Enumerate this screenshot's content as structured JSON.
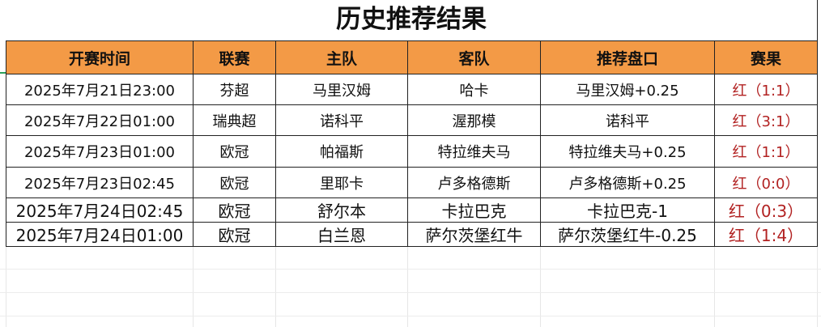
{
  "title": "历史推荐结果",
  "colors": {
    "header_bg": "#f39a46",
    "result_text": "#b22222"
  },
  "table": {
    "headers": [
      "开赛时间",
      "联赛",
      "主队",
      "客队",
      "推荐盘口",
      "赛果"
    ],
    "rows": [
      [
        "2025年7月21日23:00",
        "芬超",
        "马里汉姆",
        "哈卡",
        "马里汉姆+0.25",
        "红（1:1）"
      ],
      [
        "2025年7月22日01:00",
        "瑞典超",
        "诺科平",
        "渥那模",
        "诺科平",
        "红（3:1）"
      ],
      [
        "2025年7月23日01:00",
        "欧冠",
        "帕福斯",
        "特拉维夫马",
        "特拉维夫马+0.25",
        "红（1:1）"
      ],
      [
        "2025年7月23日02:45",
        "欧冠",
        "里耶卡",
        "卢多格德斯",
        "卢多格德斯+0.25",
        "红（0:0）"
      ],
      [
        "2025年7月24日02:45",
        "欧冠",
        "舒尔本",
        "卡拉巴克",
        "卡拉巴克-1",
        "红（0:3）"
      ],
      [
        "2025年7月24日01:00",
        "欧冠",
        "白兰恩",
        "萨尔茨堡红牛",
        "萨尔茨堡红牛-0.25",
        "红（1:4）"
      ]
    ]
  }
}
